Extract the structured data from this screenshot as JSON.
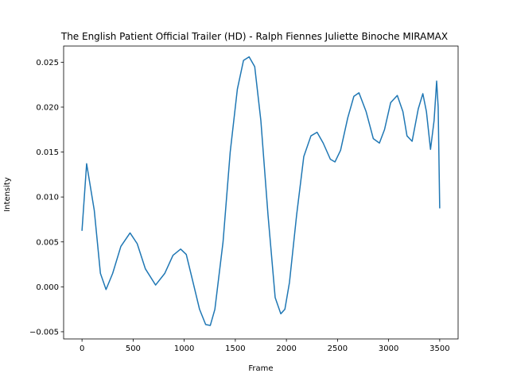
{
  "chart_data": {
    "type": "line",
    "title": "The English Patient  Official Trailer (HD) - Ralph Fiennes Juliette Binoche   MIRAMAX",
    "xlabel": "Frame",
    "ylabel": "Intensity",
    "xlim": [
      -180,
      3680
    ],
    "ylim": [
      -0.0058,
      0.0268
    ],
    "xticks": [
      0,
      500,
      1000,
      1500,
      2000,
      2500,
      3000,
      3500
    ],
    "xtick_labels": [
      "0",
      "500",
      "1000",
      "1500",
      "2000",
      "2500",
      "3000",
      "3500"
    ],
    "yticks": [
      -0.005,
      0.0,
      0.005,
      0.01,
      0.015,
      0.02,
      0.025
    ],
    "ytick_labels": [
      "−0.005",
      "0.000",
      "0.005",
      "0.010",
      "0.015",
      "0.020",
      "0.025"
    ],
    "grid": false,
    "series": [
      {
        "color": "#1f77b4",
        "x": [
          0,
          45,
          120,
          180,
          235,
          300,
          380,
          470,
          540,
          620,
          720,
          810,
          890,
          965,
          1020,
          1080,
          1150,
          1210,
          1255,
          1300,
          1380,
          1450,
          1520,
          1580,
          1635,
          1690,
          1750,
          1820,
          1890,
          1945,
          1985,
          2030,
          2100,
          2170,
          2240,
          2300,
          2360,
          2430,
          2475,
          2530,
          2600,
          2660,
          2710,
          2780,
          2850,
          2910,
          2960,
          3020,
          3085,
          3140,
          3180,
          3230,
          3290,
          3335,
          3370,
          3410,
          3445,
          3470,
          3485,
          3500
        ],
        "y": [
          0.0063,
          0.0137,
          0.0085,
          0.0015,
          -0.0003,
          0.0015,
          0.0045,
          0.006,
          0.0048,
          0.002,
          0.0002,
          0.0015,
          0.0035,
          0.0042,
          0.0036,
          0.0008,
          -0.0025,
          -0.0042,
          -0.0043,
          -0.0025,
          0.005,
          0.015,
          0.022,
          0.0252,
          0.0256,
          0.0245,
          0.0185,
          0.008,
          -0.0012,
          -0.003,
          -0.0025,
          0.0005,
          0.008,
          0.0145,
          0.0168,
          0.0172,
          0.016,
          0.0142,
          0.0139,
          0.0152,
          0.0188,
          0.0212,
          0.0216,
          0.0195,
          0.0165,
          0.016,
          0.0175,
          0.0205,
          0.0213,
          0.0195,
          0.0168,
          0.0162,
          0.0198,
          0.0215,
          0.0195,
          0.0153,
          0.0185,
          0.0229,
          0.02,
          0.0088
        ]
      }
    ]
  }
}
